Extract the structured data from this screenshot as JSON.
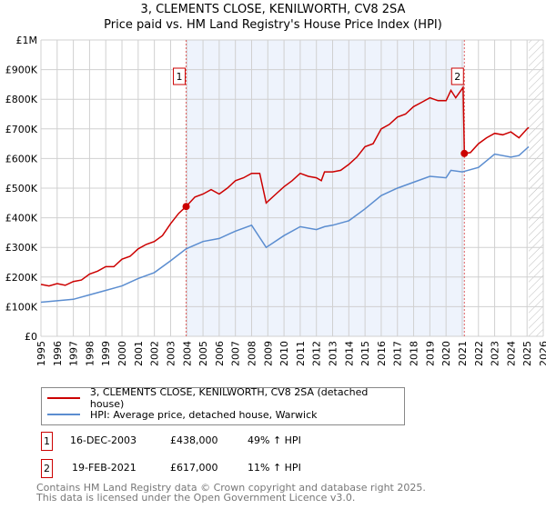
{
  "chart_data": {
    "type": "line",
    "title": "3, CLEMENTS CLOSE, KENILWORTH, CV8 2SA",
    "subtitle": "Price paid vs. HM Land Registry's House Price Index (HPI)",
    "xlim": [
      1995,
      2026
    ],
    "ylim": [
      0,
      1000000
    ],
    "x_ticks": [
      "1995",
      "1996",
      "1997",
      "1998",
      "1999",
      "2000",
      "2001",
      "2002",
      "2003",
      "2004",
      "2005",
      "2006",
      "2007",
      "2008",
      "2009",
      "2010",
      "2011",
      "2012",
      "2013",
      "2014",
      "2015",
      "2016",
      "2017",
      "2018",
      "2019",
      "2020",
      "2021",
      "2022",
      "2023",
      "2024",
      "2025",
      "2026"
    ],
    "y_ticks": [
      {
        "v": 0,
        "label": "£0"
      },
      {
        "v": 100000,
        "label": "£100K"
      },
      {
        "v": 200000,
        "label": "£200K"
      },
      {
        "v": 300000,
        "label": "£300K"
      },
      {
        "v": 400000,
        "label": "£400K"
      },
      {
        "v": 500000,
        "label": "£500K"
      },
      {
        "v": 600000,
        "label": "£600K"
      },
      {
        "v": 700000,
        "label": "£700K"
      },
      {
        "v": 800000,
        "label": "£800K"
      },
      {
        "v": 900000,
        "label": "£900K"
      },
      {
        "v": 1000000,
        "label": "£1M"
      }
    ],
    "grid": true,
    "shaded_range": [
      2003.96,
      2021.13
    ],
    "hatched_from": 2025.1,
    "series": [
      {
        "name": "3, CLEMENTS CLOSE, KENILWORTH, CV8 2SA (detached house)",
        "color": "#cc0000",
        "x": [
          1995,
          1995.5,
          1996,
          1996.5,
          1997,
          1997.5,
          1998,
          1998.5,
          1999,
          1999.5,
          2000,
          2000.5,
          2001,
          2001.5,
          2002,
          2002.5,
          2003,
          2003.5,
          2003.96,
          2004.5,
          2005,
          2005.5,
          2006,
          2006.5,
          2007,
          2007.5,
          2008,
          2008.5,
          2008.9,
          2009.5,
          2010,
          2010.5,
          2011,
          2011.5,
          2012,
          2012.3,
          2012.5,
          2013,
          2013.5,
          2014,
          2014.5,
          2015,
          2015.5,
          2016,
          2016.5,
          2017,
          2017.5,
          2018,
          2018.5,
          2019,
          2019.5,
          2020,
          2020.3,
          2020.6,
          2021.05,
          2021.13,
          2021.5,
          2022,
          2022.5,
          2023,
          2023.5,
          2024,
          2024.5,
          2025,
          2025.1
        ],
        "y": [
          175000,
          170000,
          178000,
          172000,
          185000,
          190000,
          210000,
          220000,
          235000,
          235000,
          260000,
          270000,
          295000,
          310000,
          320000,
          340000,
          380000,
          415000,
          438000,
          470000,
          480000,
          495000,
          480000,
          500000,
          525000,
          535000,
          550000,
          550000,
          450000,
          480000,
          505000,
          525000,
          550000,
          540000,
          535000,
          525000,
          555000,
          555000,
          560000,
          580000,
          605000,
          640000,
          650000,
          700000,
          715000,
          740000,
          750000,
          775000,
          790000,
          805000,
          795000,
          795000,
          830000,
          805000,
          840000,
          617000,
          620000,
          650000,
          670000,
          685000,
          680000,
          690000,
          670000,
          700000,
          705000
        ]
      },
      {
        "name": "HPI: Average price, detached house, Warwick",
        "color": "#5b8dd0",
        "x": [
          1995,
          1996,
          1997,
          1998,
          1999,
          2000,
          2001,
          2002,
          2003,
          2003.96,
          2005,
          2006,
          2007,
          2008,
          2008.9,
          2010,
          2011,
          2012,
          2012.5,
          2013,
          2014,
          2015,
          2016,
          2017,
          2018,
          2019,
          2020,
          2020.3,
          2021,
          2022,
          2023,
          2024,
          2024.5,
          2025,
          2025.1
        ],
        "y": [
          115000,
          120000,
          125000,
          140000,
          155000,
          170000,
          195000,
          215000,
          255000,
          295000,
          320000,
          330000,
          355000,
          375000,
          300000,
          340000,
          370000,
          360000,
          370000,
          375000,
          390000,
          430000,
          475000,
          500000,
          520000,
          540000,
          535000,
          560000,
          555000,
          570000,
          615000,
          605000,
          610000,
          635000,
          640000
        ]
      }
    ],
    "sales": [
      {
        "id": "1",
        "x": 2003.96,
        "y": 438000
      },
      {
        "id": "2",
        "x": 2021.13,
        "y": 617000
      }
    ]
  },
  "legend": {
    "series1": "3, CLEMENTS CLOSE, KENILWORTH, CV8 2SA (detached house)",
    "series2": "HPI: Average price, detached house, Warwick"
  },
  "transactions": [
    {
      "id": "1",
      "date": "16-DEC-2003",
      "price": "£438,000",
      "hpi": "49% ↑ HPI"
    },
    {
      "id": "2",
      "date": "19-FEB-2021",
      "price": "£617,000",
      "hpi": "11% ↑ HPI"
    }
  ],
  "footer": {
    "line1": "Contains HM Land Registry data © Crown copyright and database right 2025.",
    "line2": "This data is licensed under the Open Government Licence v3.0."
  }
}
